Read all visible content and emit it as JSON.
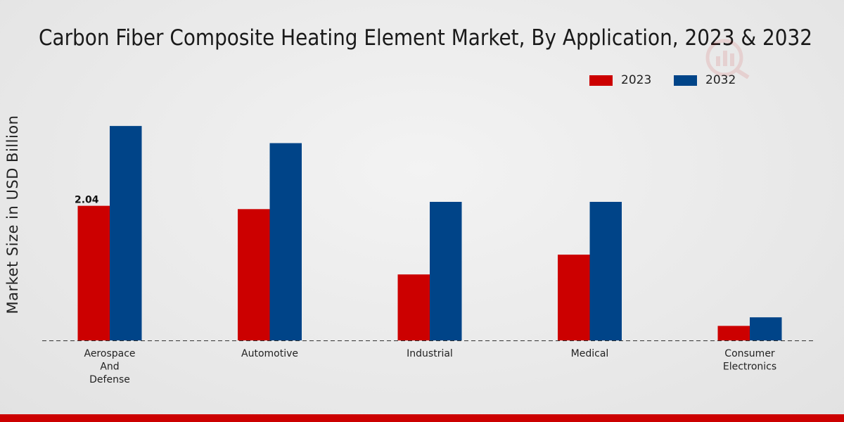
{
  "chart_data": {
    "type": "bar",
    "title": "Carbon Fiber Composite Heating Element Market, By Application, 2023 & 2032",
    "xlabel": "",
    "ylabel": "Market Size in USD Billion",
    "categories": [
      "Aerospace And Defense",
      "Automotive",
      "Industrial",
      "Medical",
      "Consumer Electronics"
    ],
    "category_lines": [
      [
        "Aerospace",
        "And",
        "Defense"
      ],
      [
        "Automotive"
      ],
      [
        "Industrial"
      ],
      [
        "Medical"
      ],
      [
        "Consumer",
        "Electronics"
      ]
    ],
    "series": [
      {
        "name": "2023",
        "color": "#cc0000",
        "values": [
          2.04,
          1.99,
          1.0,
          1.3,
          0.22
        ]
      },
      {
        "name": "2032",
        "color": "#004488",
        "values": [
          3.25,
          2.99,
          2.1,
          2.1,
          0.35
        ]
      }
    ],
    "data_labels": [
      {
        "series": 0,
        "index": 0,
        "text": "2.04"
      }
    ],
    "ylim": [
      0,
      4.2
    ],
    "grid": false,
    "legend_position": "top-right"
  }
}
